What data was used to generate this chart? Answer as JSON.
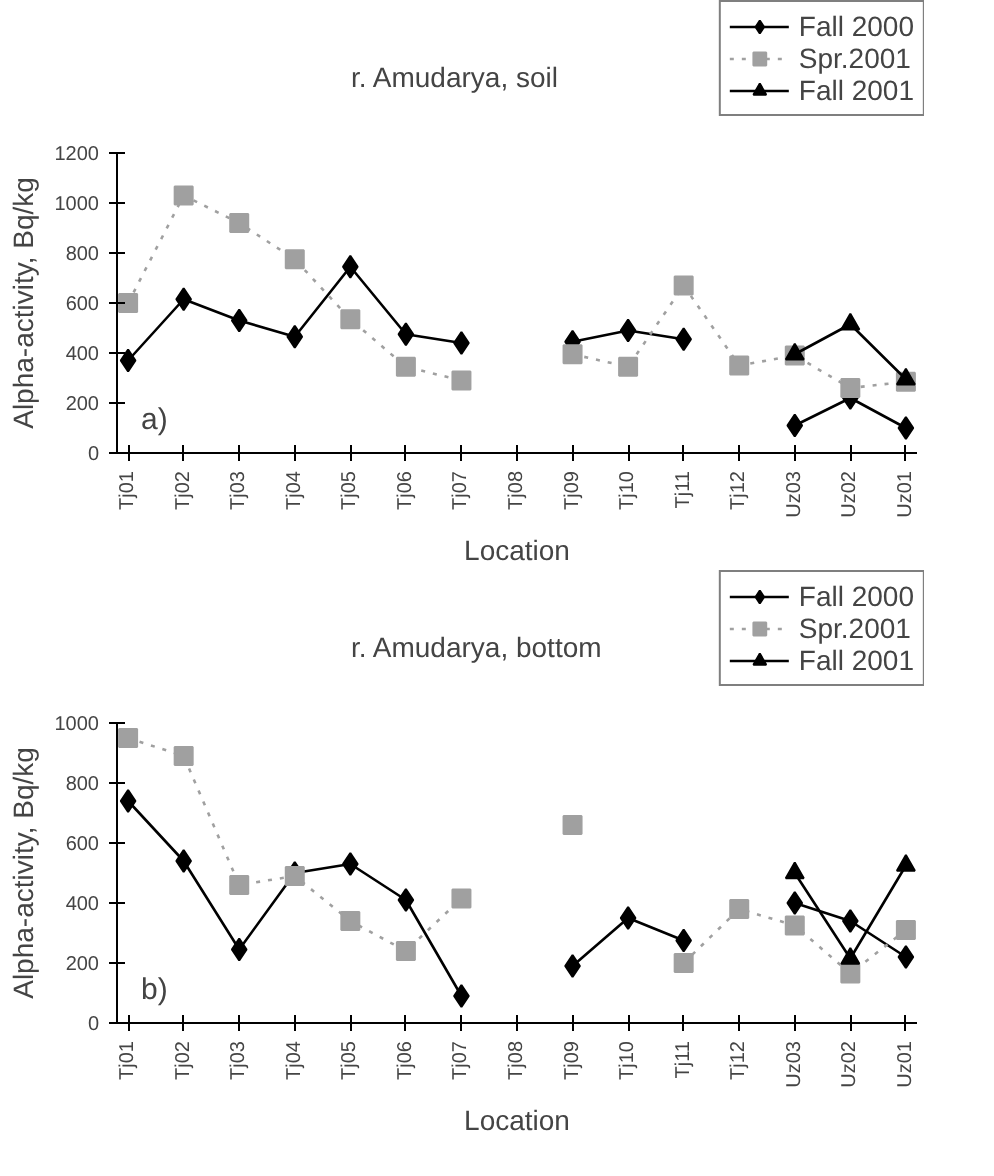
{
  "chart_data": [
    {
      "type": "line",
      "title": "r. Amudarya, soil",
      "xlabel": "Location",
      "ylabel": "Alpha-activity, Bq/kg",
      "annotations": [
        "a)"
      ],
      "categories": [
        "Tj01",
        "Tj02",
        "Tj03",
        "Tj04",
        "Tj05",
        "Tj06",
        "Tj07",
        "Tj08",
        "Tj09",
        "Tj10",
        "Tj11",
        "Tj12",
        "Uz03",
        "Uz02",
        "Uz01"
      ],
      "ylim": [
        0,
        1200
      ],
      "yticks": [
        0,
        200,
        400,
        600,
        800,
        1000,
        1200
      ],
      "legend": "top right",
      "grid": false,
      "series": [
        {
          "name": "Fall 2000",
          "color": "#000000",
          "marker": "diamond",
          "line_style": "solid",
          "values": [
            370,
            615,
            530,
            465,
            745,
            475,
            440,
            null,
            445,
            490,
            455,
            null,
            110,
            220,
            100
          ]
        },
        {
          "name": "Spr.2001",
          "color": "#a0a0a0",
          "marker": "square",
          "line_style": "dotted",
          "values": [
            600,
            1030,
            920,
            775,
            535,
            345,
            290,
            null,
            395,
            345,
            670,
            350,
            390,
            260,
            285
          ]
        },
        {
          "name": "Fall 2001",
          "color": "#000000",
          "marker": "triangle",
          "line_style": "solid",
          "values": [
            null,
            null,
            null,
            null,
            null,
            null,
            null,
            null,
            null,
            null,
            null,
            null,
            395,
            515,
            295
          ]
        }
      ]
    },
    {
      "type": "line",
      "title": "r. Amudarya, bottom",
      "xlabel": "Location",
      "ylabel": "Alpha-activity, Bq/kg",
      "annotations": [
        "b)"
      ],
      "categories": [
        "Tj01",
        "Tj02",
        "Tj03",
        "Tj04",
        "Tj05",
        "Tj06",
        "Tj07",
        "Tj08",
        "Tj09",
        "Tj10",
        "Tj11",
        "Tj12",
        "Uz03",
        "Uz02",
        "Uz01"
      ],
      "ylim": [
        0,
        1000
      ],
      "yticks": [
        0,
        200,
        400,
        600,
        800,
        1000
      ],
      "legend": "top right",
      "grid": false,
      "series": [
        {
          "name": "Fall 2000",
          "color": "#000000",
          "marker": "diamond",
          "line_style": "solid",
          "values": [
            740,
            540,
            245,
            500,
            530,
            410,
            90,
            null,
            190,
            350,
            275,
            null,
            400,
            340,
            220
          ]
        },
        {
          "name": "Spr.2001",
          "color": "#a0a0a0",
          "marker": "square",
          "line_style": "dotted",
          "values": [
            950,
            890,
            460,
            490,
            340,
            240,
            415,
            null,
            660,
            null,
            200,
            380,
            325,
            165,
            310
          ]
        },
        {
          "name": "Fall 2001",
          "color": "#000000",
          "marker": "triangle",
          "line_style": "solid",
          "values": [
            null,
            null,
            null,
            null,
            null,
            null,
            null,
            null,
            null,
            null,
            null,
            null,
            500,
            215,
            525
          ]
        }
      ]
    }
  ]
}
